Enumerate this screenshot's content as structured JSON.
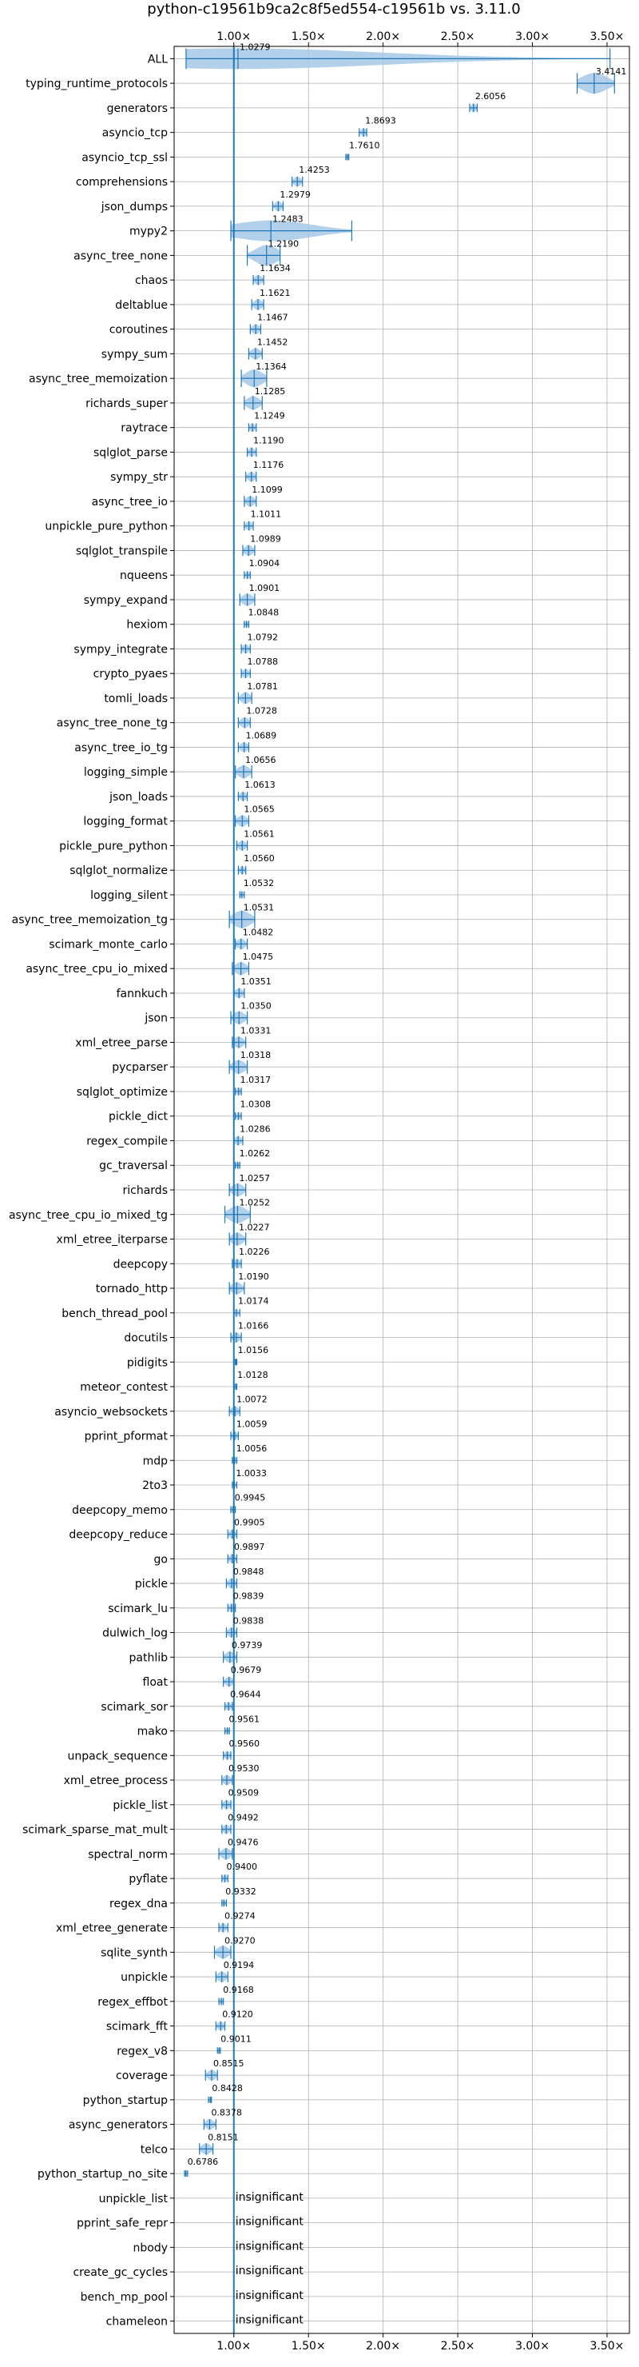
{
  "chart_data": {
    "type": "violin",
    "title": "python-c19561b9ca2c8f5ed554-c19561b vs. 3.11.0",
    "xlim": [
      0.6,
      3.65
    ],
    "xticks": [
      {
        "value": 1.0,
        "label": "1.00×"
      },
      {
        "value": 1.5,
        "label": "1.50×"
      },
      {
        "value": 2.0,
        "label": "2.00×"
      },
      {
        "value": 2.5,
        "label": "2.50×"
      },
      {
        "value": 3.0,
        "label": "3.00×"
      },
      {
        "value": 3.5,
        "label": "3.50×"
      }
    ],
    "reference_line": 1.0,
    "grid": true,
    "colors": {
      "violin": "#a6c8e8",
      "line": "#1f77b4"
    },
    "insignificant_label": "insignificant",
    "rows": [
      {
        "name": "ALL",
        "value": 1.0279,
        "label": "1.0279",
        "min": 0.68,
        "max": 3.52
      },
      {
        "name": "typing_runtime_protocols",
        "value": 3.4141,
        "label": "3.4141",
        "min": 3.3,
        "max": 3.55
      },
      {
        "name": "generators",
        "value": 2.6056,
        "label": "2.6056",
        "min": 2.58,
        "max": 2.63
      },
      {
        "name": "asyncio_tcp",
        "value": 1.8693,
        "label": "1.8693",
        "min": 1.84,
        "max": 1.89
      },
      {
        "name": "asyncio_tcp_ssl",
        "value": 1.761,
        "label": "1.7610",
        "min": 1.75,
        "max": 1.77
      },
      {
        "name": "comprehensions",
        "value": 1.4253,
        "label": "1.4253",
        "min": 1.39,
        "max": 1.46
      },
      {
        "name": "json_dumps",
        "value": 1.2979,
        "label": "1.2979",
        "min": 1.26,
        "max": 1.33
      },
      {
        "name": "mypy2",
        "value": 1.2483,
        "label": "1.2483",
        "min": 0.98,
        "max": 1.79
      },
      {
        "name": "async_tree_none",
        "value": 1.219,
        "label": "1.2190",
        "min": 1.09,
        "max": 1.31
      },
      {
        "name": "chaos",
        "value": 1.1634,
        "label": "1.1634",
        "min": 1.13,
        "max": 1.2
      },
      {
        "name": "deltablue",
        "value": 1.1621,
        "label": "1.1621",
        "min": 1.12,
        "max": 1.2
      },
      {
        "name": "coroutines",
        "value": 1.1467,
        "label": "1.1467",
        "min": 1.11,
        "max": 1.18
      },
      {
        "name": "sympy_sum",
        "value": 1.1452,
        "label": "1.1452",
        "min": 1.1,
        "max": 1.19
      },
      {
        "name": "async_tree_memoization",
        "value": 1.1364,
        "label": "1.1364",
        "min": 1.05,
        "max": 1.22
      },
      {
        "name": "richards_super",
        "value": 1.1285,
        "label": "1.1285",
        "min": 1.07,
        "max": 1.19
      },
      {
        "name": "raytrace",
        "value": 1.1249,
        "label": "1.1249",
        "min": 1.1,
        "max": 1.15
      },
      {
        "name": "sqlglot_parse",
        "value": 1.119,
        "label": "1.1190",
        "min": 1.09,
        "max": 1.15
      },
      {
        "name": "sympy_str",
        "value": 1.1176,
        "label": "1.1176",
        "min": 1.08,
        "max": 1.15
      },
      {
        "name": "async_tree_io",
        "value": 1.1099,
        "label": "1.1099",
        "min": 1.07,
        "max": 1.15
      },
      {
        "name": "unpickle_pure_python",
        "value": 1.1011,
        "label": "1.1011",
        "min": 1.07,
        "max": 1.13
      },
      {
        "name": "sqlglot_transpile",
        "value": 1.0989,
        "label": "1.0989",
        "min": 1.06,
        "max": 1.14
      },
      {
        "name": "nqueens",
        "value": 1.0904,
        "label": "1.0904",
        "min": 1.07,
        "max": 1.11
      },
      {
        "name": "sympy_expand",
        "value": 1.0901,
        "label": "1.0901",
        "min": 1.04,
        "max": 1.14
      },
      {
        "name": "hexiom",
        "value": 1.0848,
        "label": "1.0848",
        "min": 1.07,
        "max": 1.1
      },
      {
        "name": "sympy_integrate",
        "value": 1.0792,
        "label": "1.0792",
        "min": 1.05,
        "max": 1.11
      },
      {
        "name": "crypto_pyaes",
        "value": 1.0788,
        "label": "1.0788",
        "min": 1.05,
        "max": 1.11
      },
      {
        "name": "tomli_loads",
        "value": 1.0781,
        "label": "1.0781",
        "min": 1.03,
        "max": 1.12
      },
      {
        "name": "async_tree_none_tg",
        "value": 1.0728,
        "label": "1.0728",
        "min": 1.03,
        "max": 1.11
      },
      {
        "name": "async_tree_io_tg",
        "value": 1.0689,
        "label": "1.0689",
        "min": 1.03,
        "max": 1.1
      },
      {
        "name": "logging_simple",
        "value": 1.0656,
        "label": "1.0656",
        "min": 1.01,
        "max": 1.12
      },
      {
        "name": "json_loads",
        "value": 1.0613,
        "label": "1.0613",
        "min": 1.03,
        "max": 1.09
      },
      {
        "name": "logging_format",
        "value": 1.0565,
        "label": "1.0565",
        "min": 1.01,
        "max": 1.1
      },
      {
        "name": "pickle_pure_python",
        "value": 1.0561,
        "label": "1.0561",
        "min": 1.02,
        "max": 1.09
      },
      {
        "name": "sqlglot_normalize",
        "value": 1.056,
        "label": "1.0560",
        "min": 1.03,
        "max": 1.08
      },
      {
        "name": "logging_silent",
        "value": 1.0532,
        "label": "1.0532",
        "min": 1.04,
        "max": 1.07
      },
      {
        "name": "async_tree_memoization_tg",
        "value": 1.0531,
        "label": "1.0531",
        "min": 0.97,
        "max": 1.14
      },
      {
        "name": "scimark_monte_carlo",
        "value": 1.0482,
        "label": "1.0482",
        "min": 1.01,
        "max": 1.09
      },
      {
        "name": "async_tree_cpu_io_mixed",
        "value": 1.0475,
        "label": "1.0475",
        "min": 0.99,
        "max": 1.1
      },
      {
        "name": "fannkuch",
        "value": 1.0351,
        "label": "1.0351",
        "min": 1.0,
        "max": 1.07
      },
      {
        "name": "json",
        "value": 1.035,
        "label": "1.0350",
        "min": 0.98,
        "max": 1.09
      },
      {
        "name": "xml_etree_parse",
        "value": 1.0331,
        "label": "1.0331",
        "min": 0.99,
        "max": 1.08
      },
      {
        "name": "pycparser",
        "value": 1.0318,
        "label": "1.0318",
        "min": 0.97,
        "max": 1.09
      },
      {
        "name": "sqlglot_optimize",
        "value": 1.0317,
        "label": "1.0317",
        "min": 1.01,
        "max": 1.05
      },
      {
        "name": "pickle_dict",
        "value": 1.0308,
        "label": "1.0308",
        "min": 1.01,
        "max": 1.05
      },
      {
        "name": "regex_compile",
        "value": 1.0286,
        "label": "1.0286",
        "min": 1.0,
        "max": 1.06
      },
      {
        "name": "gc_traversal",
        "value": 1.0262,
        "label": "1.0262",
        "min": 1.01,
        "max": 1.04
      },
      {
        "name": "richards",
        "value": 1.0257,
        "label": "1.0257",
        "min": 0.97,
        "max": 1.08
      },
      {
        "name": "async_tree_cpu_io_mixed_tg",
        "value": 1.0252,
        "label": "1.0252",
        "min": 0.94,
        "max": 1.11
      },
      {
        "name": "xml_etree_iterparse",
        "value": 1.0227,
        "label": "1.0227",
        "min": 0.97,
        "max": 1.08
      },
      {
        "name": "deepcopy",
        "value": 1.0226,
        "label": "1.0226",
        "min": 0.99,
        "max": 1.05
      },
      {
        "name": "tornado_http",
        "value": 1.019,
        "label": "1.0190",
        "min": 0.97,
        "max": 1.07
      },
      {
        "name": "bench_thread_pool",
        "value": 1.0174,
        "label": "1.0174",
        "min": 1.0,
        "max": 1.04
      },
      {
        "name": "docutils",
        "value": 1.0166,
        "label": "1.0166",
        "min": 0.98,
        "max": 1.05
      },
      {
        "name": "pidigits",
        "value": 1.0156,
        "label": "1.0156",
        "min": 1.01,
        "max": 1.02
      },
      {
        "name": "meteor_contest",
        "value": 1.0128,
        "label": "1.0128",
        "min": 1.0,
        "max": 1.02
      },
      {
        "name": "asyncio_websockets",
        "value": 1.0072,
        "label": "1.0072",
        "min": 0.97,
        "max": 1.04
      },
      {
        "name": "pprint_pformat",
        "value": 1.0059,
        "label": "1.0059",
        "min": 0.98,
        "max": 1.03
      },
      {
        "name": "mdp",
        "value": 1.0056,
        "label": "1.0056",
        "min": 0.99,
        "max": 1.02
      },
      {
        "name": "2to3",
        "value": 1.0033,
        "label": "1.0033",
        "min": 0.99,
        "max": 1.02
      },
      {
        "name": "deepcopy_memo",
        "value": 0.9945,
        "label": "0.9945",
        "min": 0.98,
        "max": 1.01
      },
      {
        "name": "deepcopy_reduce",
        "value": 0.9905,
        "label": "0.9905",
        "min": 0.96,
        "max": 1.02
      },
      {
        "name": "go",
        "value": 0.9897,
        "label": "0.9897",
        "min": 0.96,
        "max": 1.02
      },
      {
        "name": "pickle",
        "value": 0.9848,
        "label": "0.9848",
        "min": 0.95,
        "max": 1.02
      },
      {
        "name": "scimark_lu",
        "value": 0.9839,
        "label": "0.9839",
        "min": 0.96,
        "max": 1.01
      },
      {
        "name": "dulwich_log",
        "value": 0.9838,
        "label": "0.9838",
        "min": 0.95,
        "max": 1.02
      },
      {
        "name": "pathlib",
        "value": 0.9739,
        "label": "0.9739",
        "min": 0.93,
        "max": 1.02
      },
      {
        "name": "float",
        "value": 0.9679,
        "label": "0.9679",
        "min": 0.93,
        "max": 1.0
      },
      {
        "name": "scimark_sor",
        "value": 0.9644,
        "label": "0.9644",
        "min": 0.94,
        "max": 0.99
      },
      {
        "name": "mako",
        "value": 0.9561,
        "label": "0.9561",
        "min": 0.94,
        "max": 0.97
      },
      {
        "name": "unpack_sequence",
        "value": 0.956,
        "label": "0.9560",
        "min": 0.93,
        "max": 0.98
      },
      {
        "name": "xml_etree_process",
        "value": 0.953,
        "label": "0.9530",
        "min": 0.92,
        "max": 0.99
      },
      {
        "name": "pickle_list",
        "value": 0.9509,
        "label": "0.9509",
        "min": 0.92,
        "max": 0.98
      },
      {
        "name": "scimark_sparse_mat_mult",
        "value": 0.9492,
        "label": "0.9492",
        "min": 0.92,
        "max": 0.98
      },
      {
        "name": "spectral_norm",
        "value": 0.9476,
        "label": "0.9476",
        "min": 0.9,
        "max": 0.99
      },
      {
        "name": "pyflate",
        "value": 0.94,
        "label": "0.9400",
        "min": 0.92,
        "max": 0.96
      },
      {
        "name": "regex_dna",
        "value": 0.9332,
        "label": "0.9332",
        "min": 0.92,
        "max": 0.95
      },
      {
        "name": "xml_etree_generate",
        "value": 0.9274,
        "label": "0.9274",
        "min": 0.9,
        "max": 0.96
      },
      {
        "name": "sqlite_synth",
        "value": 0.927,
        "label": "0.9270",
        "min": 0.87,
        "max": 0.98
      },
      {
        "name": "unpickle",
        "value": 0.9194,
        "label": "0.9194",
        "min": 0.88,
        "max": 0.96
      },
      {
        "name": "regex_effbot",
        "value": 0.9168,
        "label": "0.9168",
        "min": 0.9,
        "max": 0.93
      },
      {
        "name": "scimark_fft",
        "value": 0.912,
        "label": "0.9120",
        "min": 0.88,
        "max": 0.94
      },
      {
        "name": "regex_v8",
        "value": 0.9011,
        "label": "0.9011",
        "min": 0.89,
        "max": 0.91
      },
      {
        "name": "coverage",
        "value": 0.8515,
        "label": "0.8515",
        "min": 0.81,
        "max": 0.89
      },
      {
        "name": "python_startup",
        "value": 0.8428,
        "label": "0.8428",
        "min": 0.83,
        "max": 0.85
      },
      {
        "name": "async_generators",
        "value": 0.8378,
        "label": "0.8378",
        "min": 0.8,
        "max": 0.88
      },
      {
        "name": "telco",
        "value": 0.8151,
        "label": "0.8151",
        "min": 0.77,
        "max": 0.86
      },
      {
        "name": "python_startup_no_site",
        "value": 0.6786,
        "label": "0.6786",
        "min": 0.67,
        "max": 0.69
      },
      {
        "name": "unpickle_list",
        "insignificant": true
      },
      {
        "name": "pprint_safe_repr",
        "insignificant": true
      },
      {
        "name": "nbody",
        "insignificant": true
      },
      {
        "name": "create_gc_cycles",
        "insignificant": true
      },
      {
        "name": "bench_mp_pool",
        "insignificant": true
      },
      {
        "name": "chameleon",
        "insignificant": true
      }
    ]
  }
}
